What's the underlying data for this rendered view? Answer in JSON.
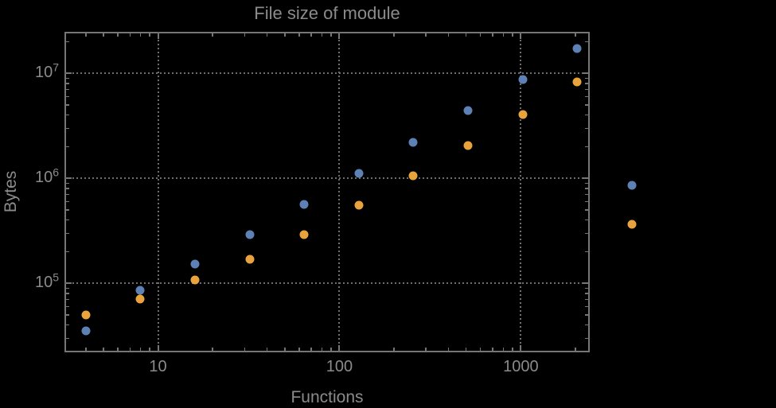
{
  "chart_data": {
    "type": "scatter",
    "title": "File size of module",
    "xlabel": "Functions",
    "ylabel": "Bytes",
    "x_scale": "log",
    "y_scale": "log",
    "xlim": [
      3.05,
      2400
    ],
    "ylim": [
      22000,
      24900000
    ],
    "grid": "dotted gridlines at major ticks only",
    "legend": "none",
    "x": [
      4,
      8,
      16,
      32,
      64,
      128,
      256,
      512,
      1024,
      2048,
      4096
    ],
    "series": [
      {
        "name": "series-1-blue",
        "color": "#5E81B5",
        "values": [
          35000,
          86000,
          153000,
          290000,
          565000,
          1110000,
          2190000,
          4460000,
          8800000,
          17300000,
          855000
        ]
      },
      {
        "name": "series-2-orange",
        "color": "#E8A33C",
        "values": [
          50000,
          71000,
          108000,
          170000,
          291000,
          553000,
          1050000,
          2040000,
          4080000,
          8330000,
          365000
        ]
      }
    ],
    "x_ticks": {
      "major": [
        10,
        100,
        1000
      ],
      "major_labels": [
        "10",
        "100",
        "1000"
      ],
      "minor": [
        4,
        5,
        6,
        7,
        8,
        9,
        20,
        30,
        40,
        50,
        60,
        70,
        80,
        90,
        200,
        300,
        400,
        500,
        600,
        700,
        800,
        900,
        2000
      ]
    },
    "y_ticks": {
      "major": [
        100000,
        1000000,
        10000000
      ],
      "major_labels": [
        {
          "base": "10",
          "exp": "5"
        },
        {
          "base": "10",
          "exp": "6"
        },
        {
          "base": "10",
          "exp": "7"
        }
      ],
      "minor": [
        30000,
        40000,
        50000,
        60000,
        70000,
        80000,
        90000,
        200000,
        300000,
        400000,
        500000,
        600000,
        700000,
        800000,
        900000,
        2000000,
        3000000,
        4000000,
        5000000,
        6000000,
        7000000,
        8000000,
        9000000,
        20000000
      ]
    }
  },
  "colors": {
    "background": "#000000",
    "frame": "#767676",
    "grid": "#6e6e6e",
    "text": "#8b8b8b",
    "series_1": "#5E81B5",
    "series_2": "#E8A33C"
  }
}
